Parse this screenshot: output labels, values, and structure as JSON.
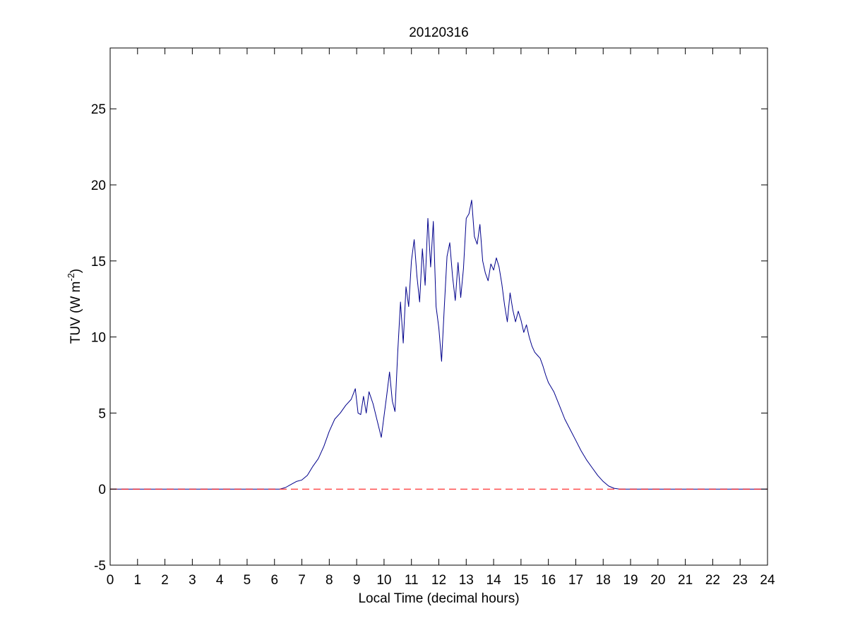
{
  "chart_data": {
    "type": "line",
    "title": "20120316",
    "xlabel": "Local Time (decimal hours)",
    "ylabel": "TUV (W m",
    "ylabel_sup": "-2",
    "ylabel_close": ")",
    "xlim": [
      0,
      24
    ],
    "ylim": [
      -5,
      29
    ],
    "xticks": [
      0,
      1,
      2,
      3,
      4,
      5,
      6,
      7,
      8,
      9,
      10,
      11,
      12,
      13,
      14,
      15,
      16,
      17,
      18,
      19,
      20,
      21,
      22,
      23,
      24
    ],
    "yticks": [
      -5,
      0,
      5,
      10,
      15,
      20,
      25
    ],
    "grid": false,
    "legend": "none",
    "series": [
      {
        "color": "#00008b",
        "style": "solid",
        "x": [
          0,
          6.2,
          6.4,
          6.6,
          6.8,
          7.0,
          7.2,
          7.4,
          7.6,
          7.8,
          8.0,
          8.2,
          8.4,
          8.6,
          8.8,
          8.95,
          9.05,
          9.15,
          9.25,
          9.35,
          9.45,
          9.6,
          9.75,
          9.9,
          10.0,
          10.1,
          10.2,
          10.3,
          10.4,
          10.5,
          10.6,
          10.7,
          10.8,
          10.9,
          11.0,
          11.1,
          11.2,
          11.3,
          11.4,
          11.5,
          11.6,
          11.7,
          11.8,
          11.9,
          12.0,
          12.1,
          12.2,
          12.3,
          12.4,
          12.5,
          12.6,
          12.7,
          12.8,
          12.9,
          13.0,
          13.1,
          13.2,
          13.3,
          13.4,
          13.5,
          13.6,
          13.7,
          13.8,
          13.9,
          14.0,
          14.1,
          14.2,
          14.3,
          14.4,
          14.5,
          14.6,
          14.7,
          14.8,
          14.9,
          15.0,
          15.1,
          15.2,
          15.3,
          15.4,
          15.5,
          15.6,
          15.7,
          15.8,
          15.9,
          16.0,
          16.2,
          16.4,
          16.6,
          16.8,
          17.0,
          17.2,
          17.4,
          17.6,
          17.8,
          18.0,
          18.2,
          18.4,
          18.6,
          19.0,
          24
        ],
        "y": [
          0,
          0.0,
          0.1,
          0.3,
          0.5,
          0.6,
          0.9,
          1.5,
          2.0,
          2.8,
          3.8,
          4.6,
          5.0,
          5.5,
          5.9,
          6.6,
          5.0,
          4.9,
          6.1,
          5.0,
          6.4,
          5.6,
          4.5,
          3.4,
          4.8,
          6.2,
          7.7,
          5.8,
          5.1,
          9.0,
          12.3,
          9.6,
          13.3,
          12.0,
          15.0,
          16.4,
          14.0,
          12.3,
          15.8,
          13.4,
          17.8,
          14.6,
          17.6,
          12.0,
          10.6,
          8.4,
          12.0,
          15.3,
          16.2,
          14.0,
          12.4,
          14.9,
          12.6,
          14.5,
          17.8,
          18.1,
          19.0,
          16.6,
          16.1,
          17.4,
          15.0,
          14.2,
          13.7,
          14.8,
          14.4,
          15.2,
          14.6,
          13.5,
          12.1,
          11.0,
          12.9,
          11.8,
          11.0,
          11.7,
          11.1,
          10.3,
          10.8,
          10.0,
          9.4,
          9.0,
          8.8,
          8.6,
          8.1,
          7.5,
          7.0,
          6.4,
          5.5,
          4.6,
          3.9,
          3.2,
          2.5,
          1.9,
          1.4,
          0.9,
          0.5,
          0.2,
          0.05,
          0.0,
          0.0,
          0.0
        ]
      },
      {
        "color": "#ff0000",
        "style": "dashed",
        "x": [
          0,
          24
        ],
        "y": [
          0,
          0
        ]
      }
    ]
  }
}
